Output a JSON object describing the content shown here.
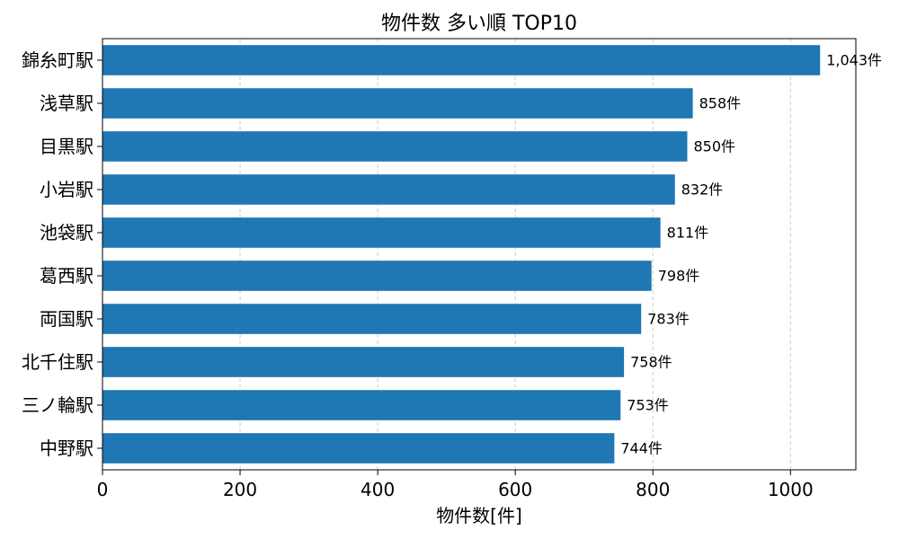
{
  "chart_data": {
    "type": "bar",
    "orientation": "horizontal",
    "title": "物件数 多い順 TOP10",
    "xlabel": "物件数[件]",
    "ylabel": "",
    "categories": [
      "錦糸町駅",
      "浅草駅",
      "目黒駅",
      "小岩駅",
      "池袋駅",
      "葛西駅",
      "両国駅",
      "北千住駅",
      "三ノ輪駅",
      "中野駅"
    ],
    "values": [
      1043,
      858,
      850,
      832,
      811,
      798,
      783,
      758,
      753,
      744
    ],
    "data_labels": [
      "1,043件",
      "858件",
      "850件",
      "832件",
      "811件",
      "798件",
      "783件",
      "758件",
      "753件",
      "744件"
    ],
    "xlim": [
      0,
      1095
    ],
    "xticks": [
      0,
      200,
      400,
      600,
      800,
      1000
    ],
    "xtick_labels": [
      "0",
      "200",
      "400",
      "600",
      "800",
      "1000"
    ],
    "grid": "x-dashed",
    "bar_color": "#1f77b4"
  }
}
